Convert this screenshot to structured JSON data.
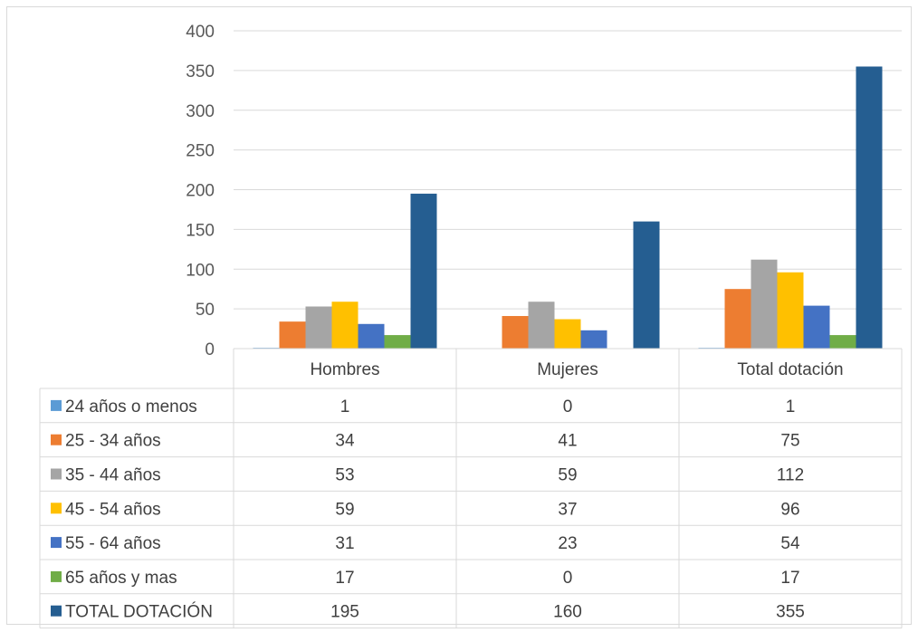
{
  "chart_data": {
    "type": "bar",
    "categories": [
      "Hombres",
      "Mujeres",
      "Total dotación"
    ],
    "series": [
      {
        "name": "24 años o menos",
        "values": [
          1,
          0,
          1
        ],
        "color": "#5b9bd5"
      },
      {
        "name": "25 - 34 años",
        "values": [
          34,
          41,
          75
        ],
        "color": "#ed7d31"
      },
      {
        "name": "35 - 44 años",
        "values": [
          53,
          59,
          112
        ],
        "color": "#a5a5a5"
      },
      {
        "name": "45 - 54 años",
        "values": [
          59,
          37,
          96
        ],
        "color": "#ffc000"
      },
      {
        "name": "55 - 64 años",
        "values": [
          31,
          23,
          54
        ],
        "color": "#4472c4"
      },
      {
        "name": "65 años y mas",
        "values": [
          17,
          0,
          17
        ],
        "color": "#70ad47"
      },
      {
        "name": "TOTAL DOTACIÓN",
        "values": [
          195,
          160,
          355
        ],
        "color": "#255e91"
      }
    ],
    "yticks": [
      0,
      50,
      100,
      150,
      200,
      250,
      300,
      350,
      400
    ],
    "ylim": [
      0,
      400
    ],
    "grid": true,
    "legend": "data-table"
  }
}
